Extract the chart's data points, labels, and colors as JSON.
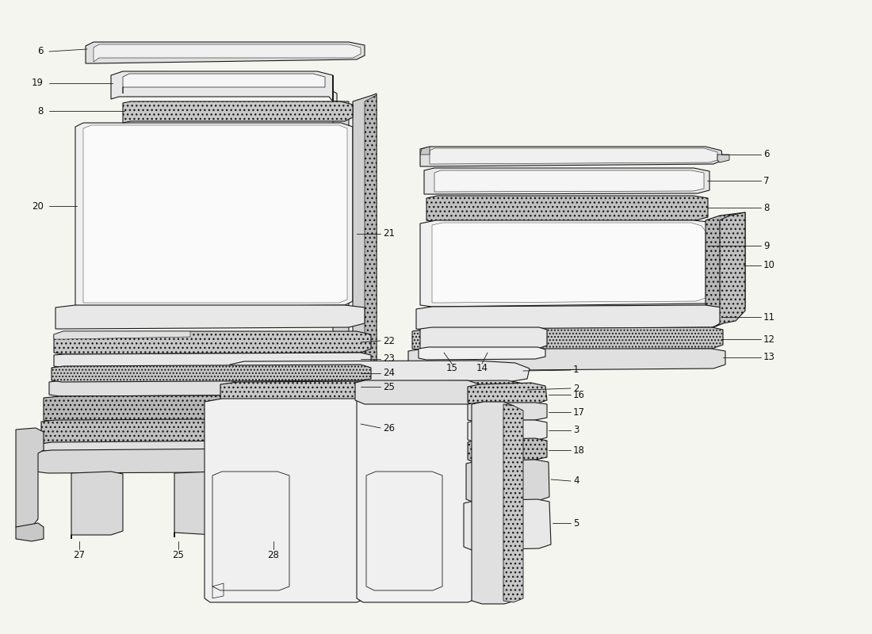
{
  "bg_color": "#f5f5f0",
  "line_color": "#1a1a1a",
  "label_fontsize": 8.5,
  "gray_light": "#e8e8e8",
  "gray_mid": "#d0d0d0",
  "gray_dark": "#b0b0b0",
  "white": "#f8f8f8",
  "foam_color": "#c8c8c8"
}
